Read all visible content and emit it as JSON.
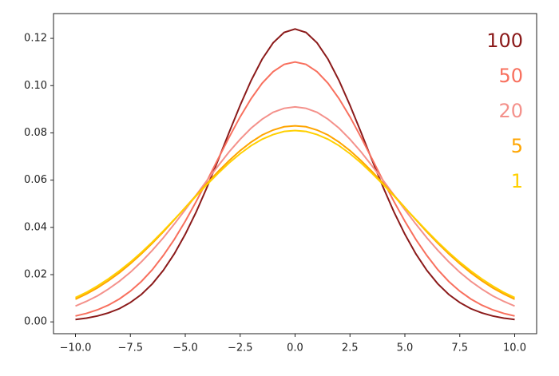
{
  "chart_data": {
    "type": "line",
    "x": [
      -10,
      -9.5,
      -9,
      -8.5,
      -8,
      -7.5,
      -7,
      -6.5,
      -6,
      -5.5,
      -5,
      -4.5,
      -4,
      -3.5,
      -3,
      -2.5,
      -2,
      -1.5,
      -1,
      -0.5,
      0,
      0.5,
      1,
      1.5,
      2,
      2.5,
      3,
      3.5,
      4,
      4.5,
      5,
      5.5,
      6,
      6.5,
      7,
      7.5,
      8,
      8.5,
      9,
      9.5,
      10
    ],
    "series": [
      {
        "name": "100",
        "color": "#8b1a1a",
        "values": [
          0.001,
          0.0016,
          0.0025,
          0.0038,
          0.0056,
          0.0082,
          0.0116,
          0.0161,
          0.0218,
          0.0288,
          0.0371,
          0.0466,
          0.0572,
          0.0686,
          0.0803,
          0.0917,
          0.1022,
          0.1112,
          0.1181,
          0.1225,
          0.124,
          0.1225,
          0.1181,
          0.1112,
          0.1022,
          0.0917,
          0.0803,
          0.0686,
          0.0572,
          0.0466,
          0.0371,
          0.0288,
          0.0218,
          0.0161,
          0.0116,
          0.0082,
          0.0056,
          0.0038,
          0.0025,
          0.0016,
          0.001
        ]
      },
      {
        "name": "50",
        "color": "#f8705e",
        "values": [
          0.0025,
          0.0036,
          0.0051,
          0.0071,
          0.0097,
          0.013,
          0.0171,
          0.0221,
          0.0281,
          0.0349,
          0.0426,
          0.051,
          0.0599,
          0.0691,
          0.0782,
          0.0868,
          0.0945,
          0.101,
          0.1059,
          0.109,
          0.11,
          0.109,
          0.1059,
          0.101,
          0.0945,
          0.0868,
          0.0782,
          0.0691,
          0.0599,
          0.051,
          0.0426,
          0.0349,
          0.0281,
          0.0221,
          0.0171,
          0.013,
          0.0097,
          0.0071,
          0.0051,
          0.0036,
          0.0025
        ]
      },
      {
        "name": "20",
        "color": "#f4918b",
        "values": [
          0.0067,
          0.0087,
          0.011,
          0.0139,
          0.0172,
          0.021,
          0.0254,
          0.0303,
          0.0356,
          0.0414,
          0.0475,
          0.0537,
          0.06,
          0.0661,
          0.072,
          0.0773,
          0.082,
          0.0858,
          0.0887,
          0.0904,
          0.091,
          0.0904,
          0.0887,
          0.0858,
          0.082,
          0.0773,
          0.072,
          0.0661,
          0.06,
          0.0537,
          0.0475,
          0.0414,
          0.0356,
          0.0303,
          0.0254,
          0.021,
          0.0172,
          0.0139,
          0.011,
          0.0087,
          0.0067
        ]
      },
      {
        "name": "5",
        "color": "#ffa500",
        "values": [
          0.0096,
          0.0118,
          0.0144,
          0.0174,
          0.0208,
          0.0246,
          0.0288,
          0.0333,
          0.0381,
          0.0432,
          0.0484,
          0.0536,
          0.0587,
          0.0637,
          0.0683,
          0.0725,
          0.0761,
          0.0791,
          0.0812,
          0.0826,
          0.083,
          0.0826,
          0.0812,
          0.0791,
          0.0761,
          0.0725,
          0.0683,
          0.0637,
          0.0587,
          0.0536,
          0.0484,
          0.0432,
          0.0381,
          0.0333,
          0.0288,
          0.0246,
          0.0208,
          0.0174,
          0.0144,
          0.0118,
          0.0096
        ]
      },
      {
        "name": "1",
        "color": "#ffd000",
        "values": [
          0.0103,
          0.0125,
          0.0152,
          0.0182,
          0.0216,
          0.0253,
          0.0294,
          0.0338,
          0.0385,
          0.0434,
          0.0483,
          0.0533,
          0.0582,
          0.0629,
          0.0673,
          0.0712,
          0.0746,
          0.0773,
          0.0793,
          0.0806,
          0.081,
          0.0806,
          0.0793,
          0.0773,
          0.0746,
          0.0712,
          0.0673,
          0.0629,
          0.0582,
          0.0533,
          0.0483,
          0.0434,
          0.0385,
          0.0338,
          0.0294,
          0.0253,
          0.0216,
          0.0182,
          0.0152,
          0.0125,
          0.0103
        ]
      }
    ],
    "xlim": [
      -11,
      11
    ],
    "xticks": [
      {
        "value": -10,
        "label": "−10.0"
      },
      {
        "value": -7.5,
        "label": "−7.5"
      },
      {
        "value": -5,
        "label": "−5.0"
      },
      {
        "value": -2.5,
        "label": "−2.5"
      },
      {
        "value": 0,
        "label": "0.0"
      },
      2.5,
      {
        "value": 5,
        "label": "5.0"
      },
      7.5,
      {
        "value": 10,
        "label": "10.0"
      }
    ],
    "ylim": [
      -0.005,
      0.1305
    ],
    "yticks": [
      {
        "value": 0,
        "label": "0.00"
      },
      {
        "value": 0.02,
        "label": "0.02"
      },
      {
        "value": 0.04,
        "label": "0.04"
      },
      {
        "value": 0.06,
        "label": "0.06"
      },
      {
        "value": 0.08,
        "label": "0.08"
      },
      {
        "value": 0.1,
        "label": "0.10"
      },
      {
        "value": 0.12,
        "label": "0.12"
      }
    ],
    "grid": false
  }
}
